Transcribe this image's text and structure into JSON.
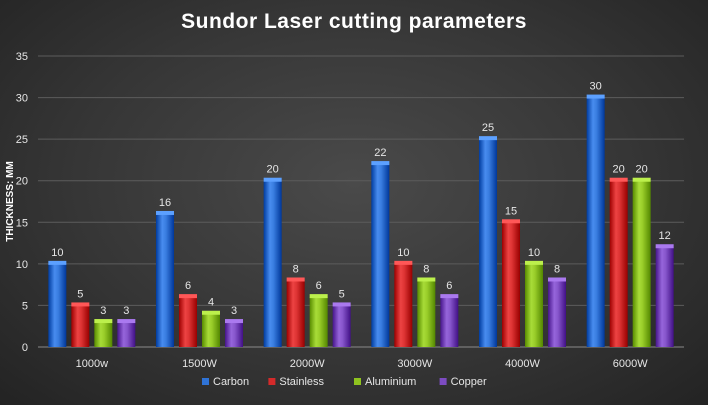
{
  "chart_data": {
    "type": "bar",
    "title": "Sundor Laser cutting parameters",
    "ylabel": "THICKNESS:    MM",
    "xlabel": "",
    "categories": [
      "1000w",
      "1500W",
      "2000W",
      "3000W",
      "4000W",
      "6000W"
    ],
    "series": [
      {
        "name": "Carbon",
        "values": [
          10,
          16,
          20,
          22,
          25,
          30
        ],
        "color": "#2f73d6"
      },
      {
        "name": "Stainless",
        "values": [
          5,
          6,
          8,
          10,
          15,
          20
        ],
        "color": "#d42a2a"
      },
      {
        "name": "Aluminium",
        "values": [
          3,
          4,
          6,
          8,
          10,
          20
        ],
        "color": "#8fc31f"
      },
      {
        "name": "Copper",
        "values": [
          3,
          3,
          5,
          6,
          8,
          12
        ],
        "color": "#7d4cc2"
      }
    ],
    "ylim": [
      0,
      35
    ],
    "yticks": [
      0,
      5,
      10,
      15,
      20,
      25,
      30,
      35
    ],
    "grid": true,
    "legend_position": "bottom"
  }
}
